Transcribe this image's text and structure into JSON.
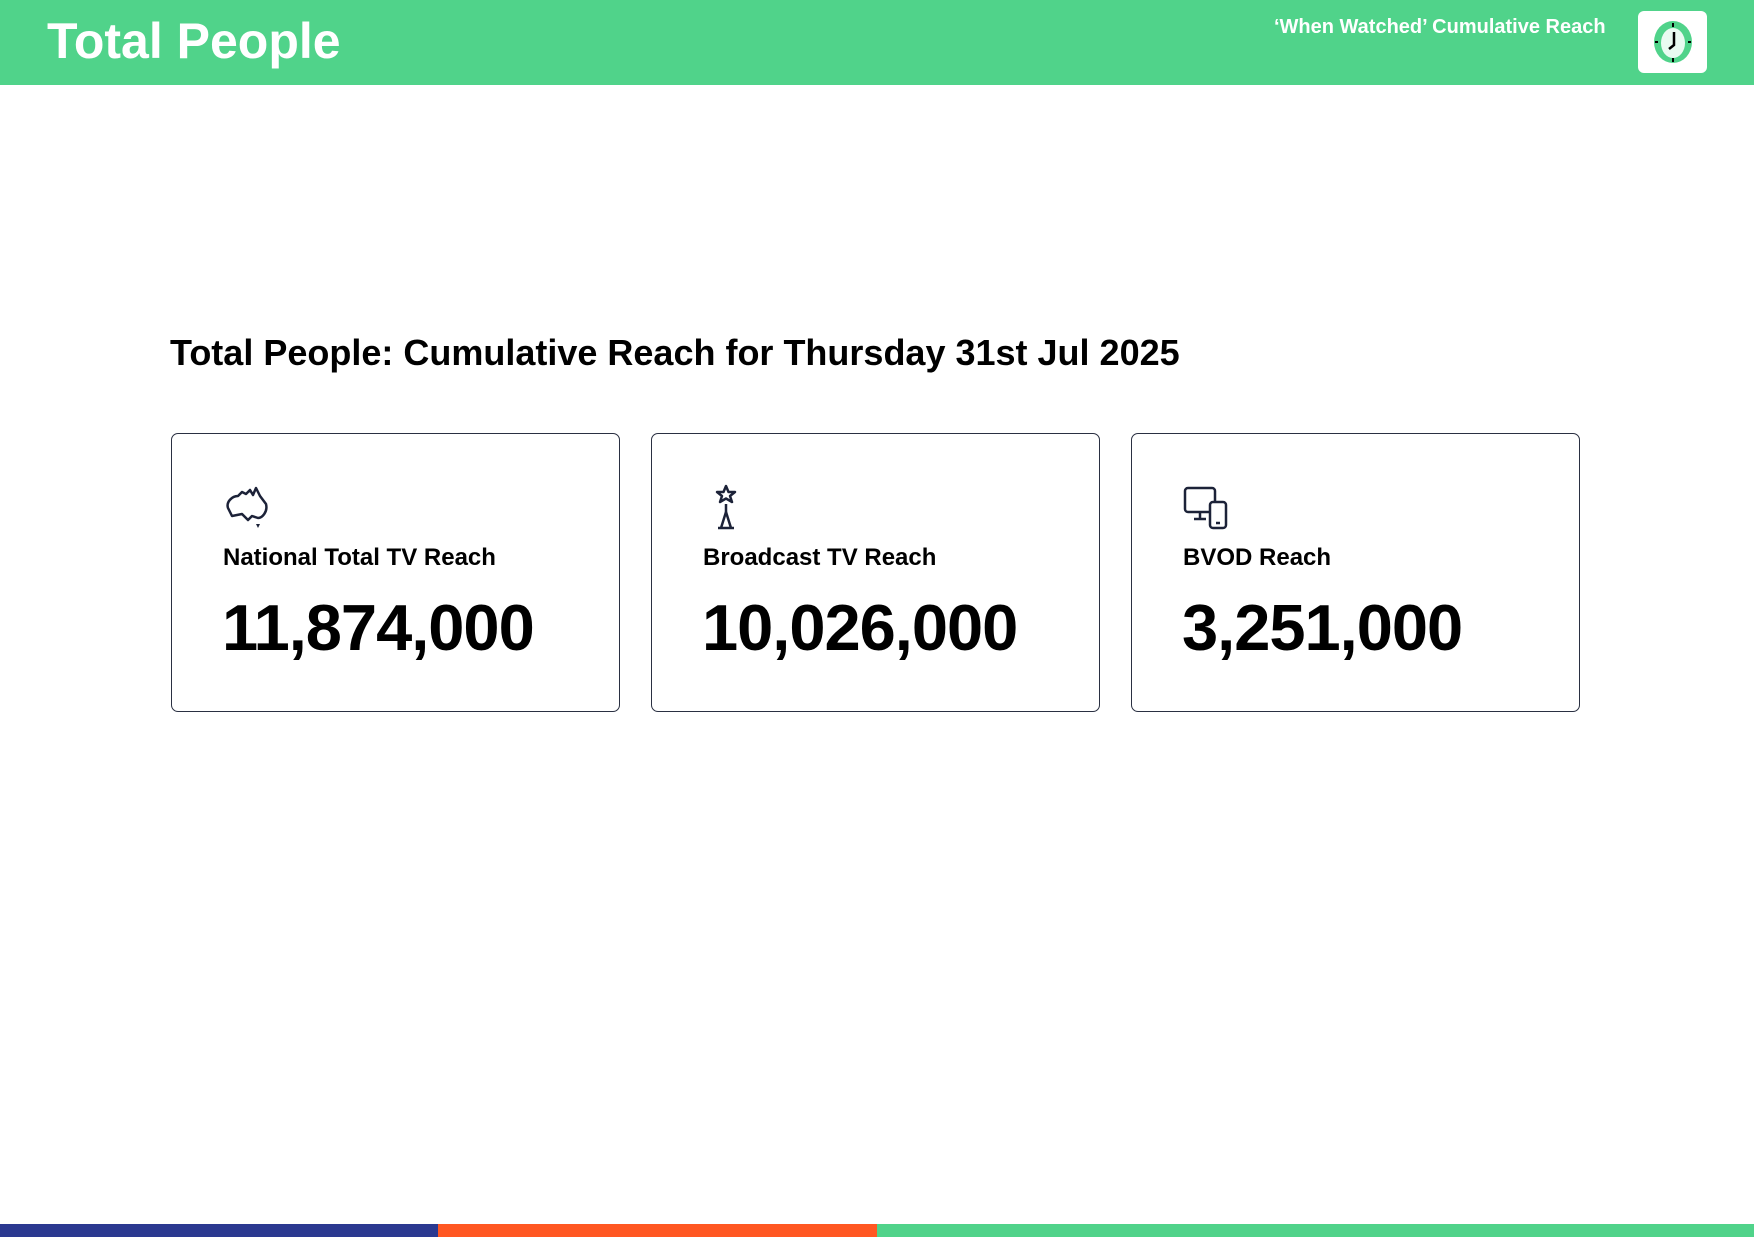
{
  "header": {
    "title": "Total People",
    "subtitle": "‘When Watched’ Cumulative Reach",
    "icon": "clock-icon",
    "color": "#50d38a"
  },
  "main": {
    "heading": "Total People: Cumulative Reach for Thursday 31st Jul 2025",
    "cards": [
      {
        "label": "National Total TV Reach",
        "value": "11,874,000",
        "icon": "australia-map-icon"
      },
      {
        "label": "Broadcast TV Reach",
        "value": "10,026,000",
        "icon": "broadcast-tower-icon"
      },
      {
        "label": "BVOD Reach",
        "value": "3,251,000",
        "icon": "devices-icon"
      }
    ]
  },
  "footer": {
    "bar_colors": [
      "#2b3990",
      "#ff5722",
      "#50d38a"
    ]
  }
}
